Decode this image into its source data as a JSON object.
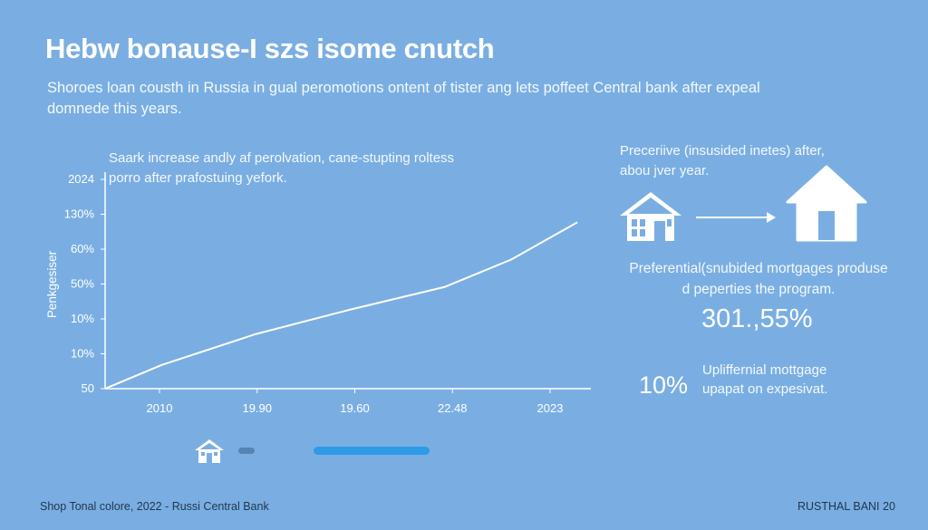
{
  "header": {
    "title": "Hebw bonause-I szs isome cnutch",
    "subtitle": "Shoroes loan cousth in Russia in gual peromotions ontent of tister ang lets poffeet Central bank after expeal domnede this years."
  },
  "chart_note": "Saark increase andly af perolvation, cane-stupting roltess porro after prafostuing yefork.",
  "chart_data": {
    "type": "line",
    "xlabel": "",
    "ylabel": "Penkgesiser",
    "x_tick_labels": [
      "2010",
      "19.90",
      "19.60",
      "22.48",
      "2023"
    ],
    "y_tick_labels": [
      "2024",
      "130%",
      "60%",
      "50%",
      "10%",
      "10%",
      "50"
    ],
    "ylim_index": [
      0,
      6
    ],
    "grid": false,
    "series": [
      {
        "x": [
          0,
          0.12,
          0.32,
          0.52,
          0.72,
          0.86,
          1.0
        ],
        "y": [
          0.0,
          0.68,
          1.57,
          2.27,
          2.92,
          3.7,
          4.77
        ]
      }
    ]
  },
  "right_panel": {
    "caption": "Preceriive (insusided inetes) after, abou jver year.",
    "preferential_text": "Preferential(snubided mortgages produse d peperties the program.",
    "big_stat": "301.,55%",
    "pct_stat": "10%",
    "uplift_text": "Upliffernial mottgage upapat on expesivat."
  },
  "bottom": {
    "progress_fraction": 1.0
  },
  "footer": {
    "left": "Shop  Tonal colore, 2022 - Russi Central Bank",
    "right": "RUSTHAL BANI 20"
  },
  "colors": {
    "background": "#7aaee2",
    "text": "#ffffff",
    "accent_bar": "#2d9be6",
    "footer_text": "#1f3550"
  },
  "icons": [
    "house-icon",
    "arrow-right-icon",
    "house-large-icon",
    "house-small-icon"
  ]
}
